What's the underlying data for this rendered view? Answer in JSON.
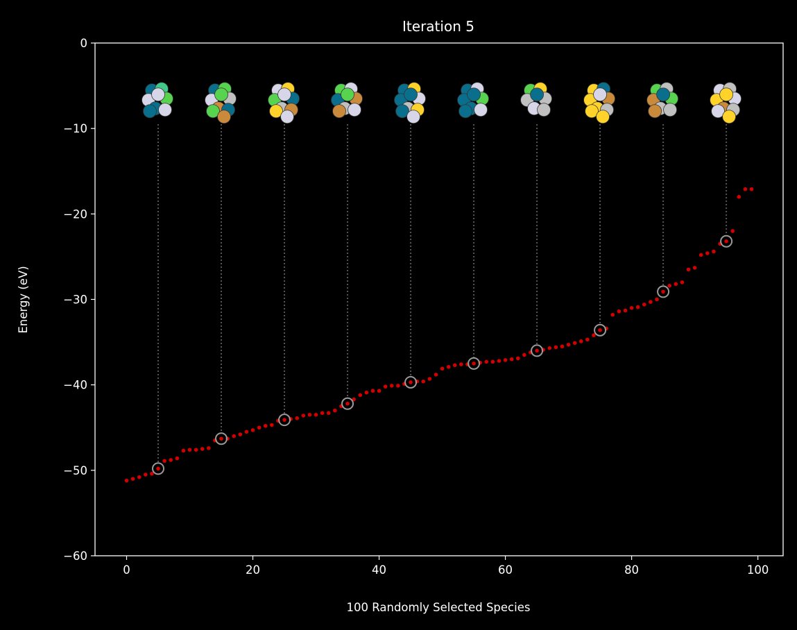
{
  "chart_data": {
    "type": "scatter",
    "title": "Iteration 5",
    "xlabel": "100 Randomly Selected Species",
    "ylabel": "Energy (eV)",
    "xlim": [
      -5,
      104
    ],
    "ylim": [
      -60,
      0
    ],
    "xticks": [
      0,
      20,
      40,
      60,
      80,
      100
    ],
    "yticks": [
      0,
      -10,
      -20,
      -30,
      -40,
      -50,
      -60
    ],
    "grid": false,
    "background": "#000000",
    "point_color": "#d40000",
    "highlight_color": "#9a9a9a",
    "connector_color": "#555555",
    "series": [
      {
        "x": [
          0,
          1,
          2,
          3,
          4,
          5,
          6,
          7,
          8,
          9,
          10,
          11,
          12,
          13,
          14,
          15,
          16,
          17,
          18,
          19,
          20,
          21,
          22,
          23,
          24,
          25,
          26,
          27,
          28,
          29,
          30,
          31,
          32,
          33,
          34,
          35,
          36,
          37,
          38,
          39,
          40,
          41,
          42,
          43,
          44,
          45,
          46,
          47,
          48,
          49,
          50,
          51,
          52,
          53,
          54,
          55,
          56,
          57,
          58,
          59,
          60,
          61,
          62,
          63,
          64,
          65,
          66,
          67,
          68,
          69,
          70,
          71,
          72,
          73,
          74,
          75,
          76,
          77,
          78,
          79,
          80,
          81,
          82,
          83,
          84,
          85,
          86,
          87,
          88,
          89,
          90,
          91,
          92,
          93,
          94,
          95,
          96,
          97,
          98,
          99
        ],
        "y": [
          -51.2,
          -51.0,
          -50.8,
          -50.5,
          -50.4,
          -49.8,
          -48.9,
          -48.8,
          -48.6,
          -47.7,
          -47.6,
          -47.6,
          -47.5,
          -47.4,
          -46.5,
          -46.3,
          -46.3,
          -46.0,
          -45.8,
          -45.5,
          -45.3,
          -45.0,
          -44.8,
          -44.7,
          -44.2,
          -44.1,
          -44.0,
          -43.9,
          -43.6,
          -43.5,
          -43.5,
          -43.3,
          -43.3,
          -43.0,
          -42.5,
          -42.2,
          -41.7,
          -41.2,
          -40.9,
          -40.7,
          -40.7,
          -40.2,
          -40.1,
          -40.1,
          -39.9,
          -39.7,
          -39.6,
          -39.6,
          -39.3,
          -38.8,
          -38.1,
          -37.9,
          -37.7,
          -37.6,
          -37.6,
          -37.5,
          -37.4,
          -37.3,
          -37.3,
          -37.2,
          -37.1,
          -37.0,
          -36.9,
          -36.5,
          -36.2,
          -36.0,
          -35.9,
          -35.7,
          -35.6,
          -35.5,
          -35.3,
          -35.1,
          -34.9,
          -34.7,
          -34.2,
          -33.6,
          -33.4,
          -31.8,
          -31.4,
          -31.3,
          -31.0,
          -30.9,
          -30.6,
          -30.3,
          -30.0,
          -29.1,
          -28.4,
          -28.2,
          -28.0,
          -26.5,
          -26.3,
          -24.8,
          -24.6,
          -24.4,
          -23.5,
          -23.2,
          -22.0,
          -18.0,
          -17.1,
          -17.1
        ]
      }
    ],
    "highlighted_x": [
      5,
      15,
      25,
      35,
      45,
      55,
      65,
      75,
      85,
      95
    ],
    "cluster_icons": [
      {
        "x": 5,
        "colors": [
          "#0a6f8c",
          "#41c98a",
          "#d6d6e8",
          "#58d34f",
          "#d6d6e8",
          "#0a6f8c",
          "#d6d6e8",
          "#0a6f8c"
        ]
      },
      {
        "x": 15,
        "colors": [
          "#0a6f8c",
          "#58d34f",
          "#d6d6e8",
          "#c0c0c0",
          "#58d34f",
          "#d08a3c",
          "#0a6f8c",
          "#58d34f",
          "#c98a3c"
        ]
      },
      {
        "x": 25,
        "colors": [
          "#d6d6e8",
          "#ffd32a",
          "#58d34f",
          "#0a6f8c",
          "#d6d6e8",
          "#c0c0c0",
          "#c98a3c",
          "#ffd32a",
          "#d6d6e8"
        ]
      },
      {
        "x": 35,
        "colors": [
          "#58d34f",
          "#d6d6e8",
          "#0a6f8c",
          "#c98a3c",
          "#58d34f",
          "#c0c0c0",
          "#d6d6e8",
          "#c98a3c"
        ]
      },
      {
        "x": 45,
        "colors": [
          "#0a6f8c",
          "#ffd32a",
          "#0a6f8c",
          "#d6d6e8",
          "#0a6f8c",
          "#c0c0c0",
          "#ffd32a",
          "#0a6f8c",
          "#d6d6e8"
        ]
      },
      {
        "x": 55,
        "colors": [
          "#0a6f8c",
          "#d6d6e8",
          "#0a6f8c",
          "#58d34f",
          "#0a6f8c",
          "#0a6f8c",
          "#d6d6e8",
          "#0a6f8c"
        ]
      },
      {
        "x": 65,
        "colors": [
          "#58d34f",
          "#ffd32a",
          "#c0c0c0",
          "#c0c0c0",
          "#0a6f8c",
          "#d6d6e8",
          "#c0c0c0"
        ]
      },
      {
        "x": 75,
        "colors": [
          "#ffd32a",
          "#0a6f8c",
          "#ffd32a",
          "#c98a3c",
          "#d6d6e8",
          "#ffd32a",
          "#c0c0c0",
          "#ffd32a",
          "#ffd32a"
        ]
      },
      {
        "x": 85,
        "colors": [
          "#58d34f",
          "#c0c0c0",
          "#c98a3c",
          "#58d34f",
          "#0a6f8c",
          "#c0c0c0",
          "#c0c0c0",
          "#c98a3c"
        ]
      },
      {
        "x": 95,
        "colors": [
          "#d6d6e8",
          "#c0c0c0",
          "#ffd32a",
          "#d6d6e8",
          "#ffd32a",
          "#c98a3c",
          "#c0c0c0",
          "#d6d6e8",
          "#ffd32a"
        ]
      }
    ]
  }
}
